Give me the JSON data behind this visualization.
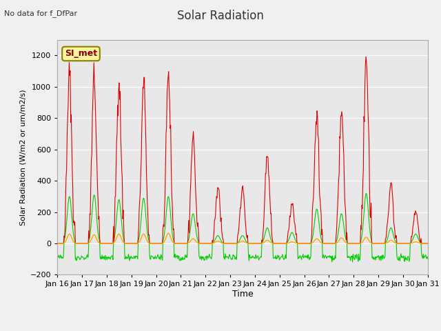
{
  "title": "Solar Radiation",
  "subtitle": "No data for f_DfPar",
  "ylabel": "Solar Radiation (W/m2 or um/m2/s)",
  "xlabel": "Time",
  "legend_label": "SI_met",
  "ylim": [
    -200,
    1300
  ],
  "yticks": [
    -200,
    0,
    200,
    400,
    600,
    800,
    1000,
    1200
  ],
  "x_labels": [
    "Jan 16",
    "Jan 17",
    "Jan 18",
    "Jan 19",
    "Jan 20",
    "Jan 21",
    "Jan 22",
    "Jan 23",
    "Jan 24",
    "Jan 25",
    "Jan 26",
    "Jan 27",
    "Jan 28",
    "Jan 29",
    "Jan 30",
    "Jan 31"
  ],
  "background_color": "#f0f0f0",
  "plot_bg_color": "#e8e8e8",
  "incoming_color": "#dd0000",
  "reflected_color": "#ffa500",
  "net_color": "#00cc00",
  "n_days": 15,
  "points_per_day": 48,
  "incoming_peaks": [
    1080,
    1060,
    1045,
    1040,
    1110,
    680,
    360,
    360,
    560,
    260,
    835,
    850,
    1175,
    390,
    200
  ],
  "reflected_peaks": [
    60,
    55,
    60,
    60,
    65,
    30,
    15,
    15,
    20,
    10,
    30,
    35,
    40,
    20,
    10
  ],
  "net_peaks": [
    300,
    310,
    280,
    290,
    300,
    190,
    50,
    50,
    100,
    70,
    220,
    190,
    320,
    100,
    60
  ],
  "night_net": -90
}
